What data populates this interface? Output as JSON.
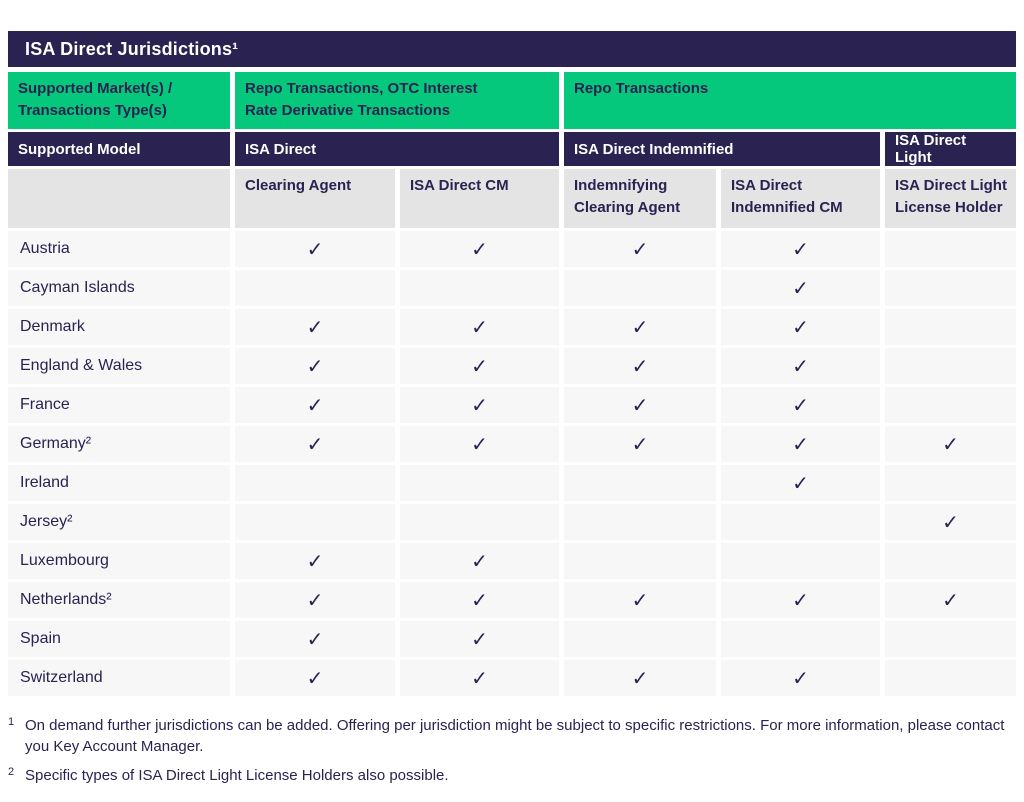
{
  "colors": {
    "navy": "#2a2251",
    "green": "#05C87C",
    "header_gray": "#e4e4e4",
    "row_bg": "#f7f7f7",
    "title_text": "#ffffff"
  },
  "title": "ISA Direct Jurisdictions¹",
  "header": {
    "market_label": "Supported Market(s) / Transactions Type(s)",
    "market_groups": [
      "Repo Transactions, OTC Interest Rate Derivative Transactions",
      "Repo Transactions"
    ],
    "model_label": "Supported Model",
    "models": [
      "ISA Direct",
      "ISA Direct Indemnified",
      "ISA Direct Light"
    ],
    "roles": [
      "Clearing Agent",
      "ISA Direct CM",
      "Indemnifying Clearing Agent",
      "ISA Direct Indemnified CM",
      "ISA Direct Light License Holder"
    ]
  },
  "check_glyph": "✓",
  "jurisdictions": [
    {
      "name": "Austria",
      "checks": [
        true,
        true,
        true,
        true,
        false
      ]
    },
    {
      "name": "Cayman Islands",
      "checks": [
        false,
        false,
        false,
        true,
        false
      ]
    },
    {
      "name": "Denmark",
      "checks": [
        true,
        true,
        true,
        true,
        false
      ]
    },
    {
      "name": "England & Wales",
      "checks": [
        true,
        true,
        true,
        true,
        false
      ]
    },
    {
      "name": "France",
      "checks": [
        true,
        true,
        true,
        true,
        false
      ]
    },
    {
      "name": "Germany²",
      "checks": [
        true,
        true,
        true,
        true,
        true
      ]
    },
    {
      "name": "Ireland",
      "checks": [
        false,
        false,
        false,
        true,
        false
      ]
    },
    {
      "name": "Jersey²",
      "checks": [
        false,
        false,
        false,
        false,
        true
      ]
    },
    {
      "name": "Luxembourg",
      "checks": [
        true,
        true,
        false,
        false,
        false
      ]
    },
    {
      "name": "Netherlands²",
      "checks": [
        true,
        true,
        true,
        true,
        true
      ]
    },
    {
      "name": "Spain",
      "checks": [
        true,
        true,
        false,
        false,
        false
      ]
    },
    {
      "name": "Switzerland",
      "checks": [
        true,
        true,
        true,
        true,
        false
      ]
    }
  ],
  "footnotes": [
    {
      "marker": "1",
      "text": "On demand further jurisdictions can be added. Offering per jurisdiction might be subject to specific restrictions. For more information, please contact you Key Account Manager."
    },
    {
      "marker": "2",
      "text": "Specific types of ISA Direct Light License Holders also possible."
    }
  ]
}
